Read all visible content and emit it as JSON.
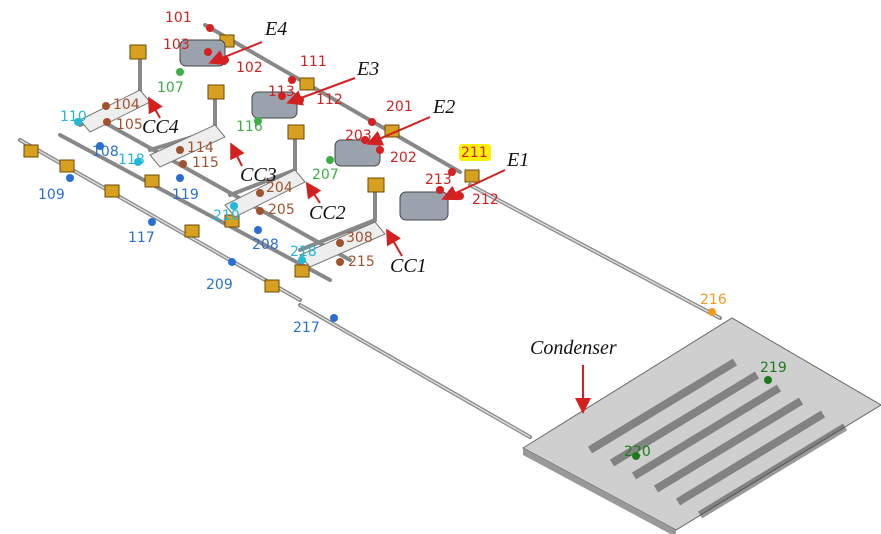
{
  "evaporators": [
    "E4",
    "E3",
    "E2",
    "E1"
  ],
  "cold_caps": [
    "CC4",
    "CC3",
    "CC2",
    "CC1"
  ],
  "condenser": "Condenser",
  "sensors": [
    {
      "label": "101",
      "color": "#d42020"
    },
    {
      "label": "103",
      "color": "#d42020"
    },
    {
      "label": "102",
      "color": "#d42020"
    },
    {
      "label": "111",
      "color": "#d42020"
    },
    {
      "label": "113",
      "color": "#d42020"
    },
    {
      "label": "112",
      "color": "#d42020"
    },
    {
      "label": "201",
      "color": "#d42020"
    },
    {
      "label": "203",
      "color": "#d42020"
    },
    {
      "label": "202",
      "color": "#d42020"
    },
    {
      "label": "211",
      "color": "#d42020"
    },
    {
      "label": "213",
      "color": "#d42020"
    },
    {
      "label": "212",
      "color": "#d42020"
    },
    {
      "label": "104",
      "color": "#a0522d"
    },
    {
      "label": "105",
      "color": "#a0522d"
    },
    {
      "label": "114",
      "color": "#a0522d"
    },
    {
      "label": "115",
      "color": "#a0522d"
    },
    {
      "label": "204",
      "color": "#a0522d"
    },
    {
      "label": "205",
      "color": "#a0522d"
    },
    {
      "label": "308",
      "color": "#a0522d"
    },
    {
      "label": "215",
      "color": "#a0522d"
    },
    {
      "label": "107",
      "color": "#3cb043"
    },
    {
      "label": "116",
      "color": "#3cb043"
    },
    {
      "label": "207",
      "color": "#3cb043"
    },
    {
      "label": "110",
      "color": "#22b8d8"
    },
    {
      "label": "118",
      "color": "#22b8d8"
    },
    {
      "label": "210",
      "color": "#22b8d8"
    },
    {
      "label": "218",
      "color": "#22b8d8"
    },
    {
      "label": "108",
      "color": "#2a6fd0"
    },
    {
      "label": "109",
      "color": "#2a6fd0"
    },
    {
      "label": "119",
      "color": "#2a6fd0"
    },
    {
      "label": "117",
      "color": "#2a6fd0"
    },
    {
      "label": "208",
      "color": "#2a6fd0"
    },
    {
      "label": "209",
      "color": "#2a6fd0"
    },
    {
      "label": "217",
      "color": "#2a6fd0"
    },
    {
      "label": "216",
      "color": "#f09a20"
    },
    {
      "label": "219",
      "color": "#1e7a1e"
    },
    {
      "label": "220",
      "color": "#1e7a1e"
    }
  ]
}
